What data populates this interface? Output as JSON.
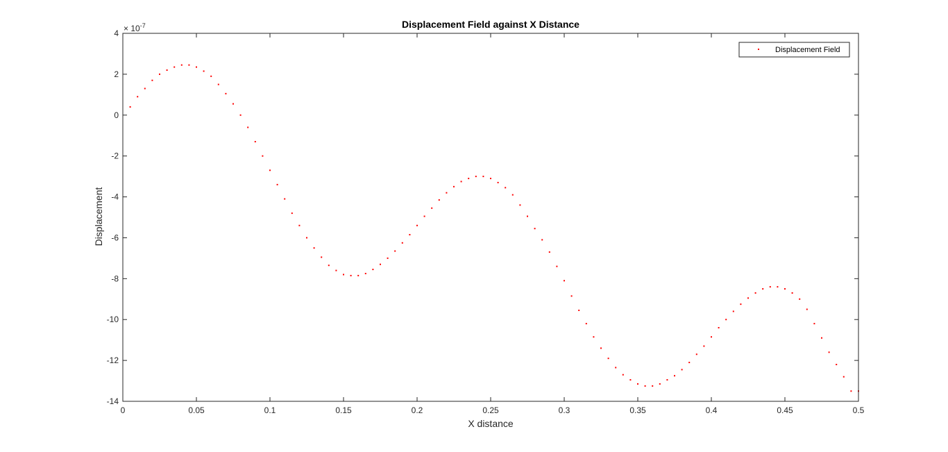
{
  "chart_data": {
    "type": "scatter",
    "title": "Displacement Field against X Distance",
    "xlabel": "X distance",
    "ylabel": "Displacement",
    "y_exponent_label": "× 10",
    "y_exponent_power": "-7",
    "xlim": [
      0,
      0.5
    ],
    "ylim": [
      -14,
      4
    ],
    "x_ticks": [
      0,
      0.05,
      0.1,
      0.15,
      0.2,
      0.25,
      0.3,
      0.35,
      0.4,
      0.45,
      0.5
    ],
    "x_tick_labels": [
      "0",
      "0.05",
      "0.1",
      "0.15",
      "0.2",
      "0.25",
      "0.3",
      "0.35",
      "0.4",
      "0.45",
      "0.5"
    ],
    "y_ticks": [
      -14,
      -12,
      -10,
      -8,
      -6,
      -4,
      -2,
      0,
      2,
      4
    ],
    "y_tick_labels": [
      "-14",
      "-12",
      "-10",
      "-8",
      "-6",
      "-4",
      "-2",
      "0",
      "2",
      "4"
    ],
    "grid": false,
    "legend_position": "top-right",
    "marker_color": "#ff0000",
    "series": [
      {
        "name": "Displacement Field",
        "x": [
          0.005,
          0.01,
          0.015,
          0.02,
          0.025,
          0.03,
          0.035,
          0.04,
          0.045,
          0.05,
          0.055,
          0.06,
          0.065,
          0.07,
          0.075,
          0.08,
          0.085,
          0.09,
          0.095,
          0.1,
          0.105,
          0.11,
          0.115,
          0.12,
          0.125,
          0.13,
          0.135,
          0.14,
          0.145,
          0.15,
          0.155,
          0.16,
          0.165,
          0.17,
          0.175,
          0.18,
          0.185,
          0.19,
          0.195,
          0.2,
          0.205,
          0.21,
          0.215,
          0.22,
          0.225,
          0.23,
          0.235,
          0.24,
          0.245,
          0.25,
          0.255,
          0.26,
          0.265,
          0.27,
          0.275,
          0.28,
          0.285,
          0.29,
          0.295,
          0.3,
          0.305,
          0.31,
          0.315,
          0.32,
          0.325,
          0.33,
          0.335,
          0.34,
          0.345,
          0.35,
          0.355,
          0.36,
          0.365,
          0.37,
          0.375,
          0.38,
          0.385,
          0.39,
          0.395,
          0.4,
          0.405,
          0.41,
          0.415,
          0.42,
          0.425,
          0.43,
          0.435,
          0.44,
          0.445,
          0.45,
          0.455,
          0.46,
          0.465,
          0.47,
          0.475,
          0.48,
          0.485,
          0.49,
          0.495,
          0.5
        ],
        "y": [
          0.4,
          0.9,
          1.3,
          1.7,
          2.0,
          2.2,
          2.35,
          2.45,
          2.45,
          2.35,
          2.15,
          1.9,
          1.5,
          1.05,
          0.55,
          0.0,
          -0.6,
          -1.3,
          -2.0,
          -2.7,
          -3.4,
          -4.1,
          -4.8,
          -5.4,
          -6.0,
          -6.5,
          -6.95,
          -7.35,
          -7.6,
          -7.8,
          -7.85,
          -7.85,
          -7.75,
          -7.55,
          -7.3,
          -7.0,
          -6.65,
          -6.25,
          -5.85,
          -5.4,
          -4.95,
          -4.55,
          -4.15,
          -3.8,
          -3.5,
          -3.25,
          -3.1,
          -3.0,
          -3.0,
          -3.1,
          -3.3,
          -3.55,
          -3.9,
          -4.4,
          -4.95,
          -5.55,
          -6.1,
          -6.7,
          -7.4,
          -8.1,
          -8.85,
          -9.55,
          -10.2,
          -10.85,
          -11.4,
          -11.9,
          -12.35,
          -12.7,
          -12.95,
          -13.15,
          -13.25,
          -13.25,
          -13.15,
          -12.95,
          -12.75,
          -12.45,
          -12.1,
          -11.7,
          -11.3,
          -10.85,
          -10.4,
          -10.0,
          -9.6,
          -9.25,
          -8.95,
          -8.7,
          -8.5,
          -8.4,
          -8.4,
          -8.5,
          -8.7,
          -9.0,
          -9.5,
          -10.2,
          -10.9,
          -11.6,
          -12.2,
          -12.8,
          -13.5,
          -13.5
        ]
      }
    ]
  }
}
